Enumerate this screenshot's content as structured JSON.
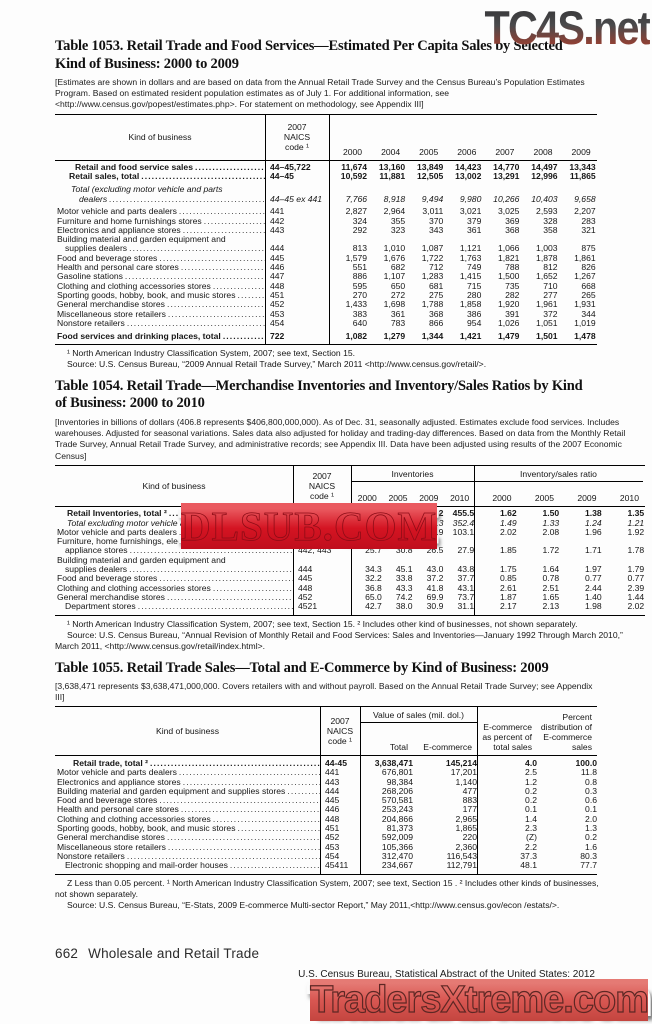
{
  "watermarks": {
    "top": "TC4S.net",
    "middle": "DLSUB.COM",
    "bottom": "TradersXtreme.com"
  },
  "footer": {
    "page_number": "662",
    "section": "Wholesale and Retail Trade",
    "source_line": "U.S. Census Bureau, Statistical Abstract of the United States: 2012"
  },
  "tables": [
    {
      "title": "Table 1053. Retail Trade and Food Services—Estimated Per Capita Sales by Selected Kind of Business: 2000 to 2009",
      "note": "[Estimates are shown in dollars and are based on data from the Annual Retail Trade Survey and the Census Bureau’s Population Estimates Program. Based on estimated resident population estimates as of July 1. For additional information, see <http://www.census.gov/popest/estimates.php>. For statement on methodology, see Appendix III]",
      "header": {
        "kind": "Kind of business",
        "naics": "2007 NAICS code ¹",
        "years": [
          "2000",
          "2004",
          "2005",
          "2006",
          "2007",
          "2008",
          "2009"
        ]
      },
      "rows": [
        {
          "cls": "bold",
          "indent": 20,
          "label": "Retail and food service sales",
          "naics": "44–45,722",
          "values": [
            "11,674",
            "13,160",
            "13,849",
            "14,423",
            "14,770",
            "14,497",
            "13,343"
          ]
        },
        {
          "cls": "bold",
          "indent": 14,
          "label": "Retail sales, total",
          "naics": "44–45",
          "values": [
            "10,592",
            "11,881",
            "12,505",
            "13,002",
            "13,291",
            "12,996",
            "11,865"
          ]
        },
        {
          "gap": true
        },
        {
          "cls": "italic",
          "pre": "Total (excluding motor vehicle and parts",
          "pre_indent": 16,
          "indent": 24,
          "label": "dealers",
          "naics": "44–45 ex 441",
          "values": [
            "7,766",
            "8,918",
            "9,494",
            "9,980",
            "10,266",
            "10,403",
            "9,658"
          ]
        },
        {
          "gap": true
        },
        {
          "indent": 2,
          "label": "Motor vehicle and parts dealers",
          "naics": "441",
          "values": [
            "2,827",
            "2,964",
            "3,011",
            "3,021",
            "3,025",
            "2,593",
            "2,207"
          ]
        },
        {
          "indent": 2,
          "label": "Furniture and home furnishings stores",
          "naics": "442",
          "values": [
            "324",
            "355",
            "370",
            "379",
            "369",
            "328",
            "283"
          ]
        },
        {
          "indent": 2,
          "label": "Electronics and appliance stores",
          "naics": "443",
          "values": [
            "292",
            "323",
            "343",
            "361",
            "368",
            "358",
            "321"
          ]
        },
        {
          "pre": "Building material and garden equipment and",
          "pre_indent": 2,
          "indent": 10,
          "label": "supplies dealers",
          "naics": "444",
          "values": [
            "813",
            "1,010",
            "1,087",
            "1,121",
            "1,066",
            "1,003",
            "875"
          ]
        },
        {
          "indent": 2,
          "label": "Food and beverage stores",
          "naics": "445",
          "values": [
            "1,579",
            "1,676",
            "1,722",
            "1,763",
            "1,821",
            "1,878",
            "1,861"
          ]
        },
        {
          "indent": 2,
          "label": "Health and personal care stores",
          "naics": "446",
          "values": [
            "551",
            "682",
            "712",
            "749",
            "788",
            "812",
            "826"
          ]
        },
        {
          "indent": 2,
          "label": "Gasoline stations",
          "naics": "447",
          "values": [
            "886",
            "1,107",
            "1,283",
            "1,415",
            "1,500",
            "1,652",
            "1,267"
          ]
        },
        {
          "indent": 2,
          "label": "Clothing and clothing accessories stores",
          "naics": "448",
          "values": [
            "595",
            "650",
            "681",
            "715",
            "735",
            "710",
            "668"
          ]
        },
        {
          "indent": 2,
          "label": "Sporting goods, hobby, book, and music stores",
          "naics": "451",
          "values": [
            "270",
            "272",
            "275",
            "280",
            "282",
            "277",
            "265"
          ]
        },
        {
          "indent": 2,
          "label": "General merchandise stores",
          "naics": "452",
          "values": [
            "1,433",
            "1,698",
            "1,788",
            "1,858",
            "1,920",
            "1,961",
            "1,931"
          ]
        },
        {
          "indent": 2,
          "label": "Miscellaneous store retailers",
          "naics": "453",
          "values": [
            "383",
            "361",
            "368",
            "386",
            "391",
            "372",
            "344"
          ]
        },
        {
          "indent": 2,
          "label": "Nonstore retailers",
          "naics": "454",
          "values": [
            "640",
            "783",
            "866",
            "954",
            "1,026",
            "1,051",
            "1,019"
          ]
        },
        {
          "gap": true
        },
        {
          "cls": "bold",
          "indent": 2,
          "label": "Food services and drinking places, total",
          "naics": "722",
          "values": [
            "1,082",
            "1,279",
            "1,344",
            "1,421",
            "1,479",
            "1,501",
            "1,478"
          ]
        }
      ],
      "footnotes": [
        "¹ North American Industry Classification System, 2007; see text, Section 15.",
        "Source: U.S. Census Bureau, “2009 Annual Retail Trade Survey,” March 2011 <http://www.census.gov/retail/>."
      ]
    },
    {
      "title": "Table 1054. Retail Trade—Merchandise Inventories and Inventory/Sales Ratios by Kind of Business: 2000 to 2010",
      "note": "[Inventories in billions of dollars (406.8 represents $406,800,000,000). As of Dec. 31, seasonally adjusted. Estimates exclude food services. Includes warehouses. Adjusted for seasonal variations. Sales data also adjusted for holiday and trading-day differences. Based on data from the Monthly Retail Trade Survey, Annual Retail Trade Survey, and administrative records; see Appendix III. Data have been adjusted using results of the 2007 Economic Census]",
      "header": {
        "kind": "Kind of business",
        "naics": "2007 NAICS code ¹",
        "group1": "Inventories",
        "group2": "Inventory/sales ratio",
        "years": [
          "2000",
          "2005",
          "2009",
          "2010"
        ]
      },
      "rows": [
        {
          "cls": "bold",
          "indent": 12,
          "label": "Retail Inventories, total ²",
          "naics": "44–45",
          "values": [
            "406.8",
            "472.2",
            "429.2",
            "455.5",
            "1.62",
            "1.50",
            "1.38",
            "1.35"
          ]
        },
        {
          "cls": "italic",
          "indent": 12,
          "label": "Total excluding motor vehicle and parts dealers",
          "naics": "44–45 ex 441",
          "values": [
            "318.6",
            "365.0",
            "340.3",
            "352.4",
            "1.49",
            "1.33",
            "1.24",
            "1.21"
          ]
        },
        {
          "indent": 2,
          "label": "Motor vehicle and parts dealers",
          "naics": "441",
          "values": [
            "88.2",
            "107.2",
            "88.9",
            "103.1",
            "2.02",
            "2.08",
            "1.96",
            "1.92"
          ]
        },
        {
          "pre": "Furniture, home furnishings, electronics, and",
          "pre_indent": 2,
          "indent": 10,
          "label": "appliance stores",
          "naics": "442, 443",
          "values": [
            "25.7",
            "30.8",
            "26.5",
            "27.9",
            "1.85",
            "1.72",
            "1.71",
            "1.78"
          ]
        },
        {
          "pre": "Building material and garden equipment and",
          "pre_indent": 2,
          "indent": 10,
          "label": "supplies dealers",
          "naics": "444",
          "values": [
            "34.3",
            "45.1",
            "43.0",
            "43.8",
            "1.75",
            "1.64",
            "1.97",
            "1.79"
          ]
        },
        {
          "indent": 2,
          "label": "Food and beverage stores",
          "naics": "445",
          "values": [
            "32.2",
            "33.8",
            "37.2",
            "37.7",
            "0.85",
            "0.78",
            "0.77",
            "0.77"
          ]
        },
        {
          "indent": 2,
          "label": "Clothing and clothing accessories stores",
          "naics": "448",
          "values": [
            "36.8",
            "43.3",
            "41.8",
            "43.1",
            "2.61",
            "2.51",
            "2.44",
            "2.39"
          ]
        },
        {
          "indent": 2,
          "label": "General merchandise stores",
          "naics": "452",
          "values": [
            "65.0",
            "74.2",
            "69.9",
            "73.7",
            "1.87",
            "1.65",
            "1.40",
            "1.44"
          ]
        },
        {
          "indent": 10,
          "label": "Department stores",
          "naics": "4521",
          "values": [
            "42.7",
            "38.0",
            "30.9",
            "31.1",
            "2.17",
            "2.13",
            "1.98",
            "2.02"
          ]
        }
      ],
      "footnotes": [
        "¹ North American Industry Classification System, 2007; see text, Section 15. ² Includes other kind of businesses, not shown separately.",
        "Source: U.S. Census Bureau, “Annual Revision of Monthly Retail and Food Services: Sales and Inventories—January 1992 Through March 2010,” March 2011, <http://www.census.gov/retail/index.html>."
      ]
    },
    {
      "title": "Table 1055. Retail Trade Sales—Total and E-Commerce by Kind of Business: 2009",
      "note": "[3,638,471 represents $3,638,471,000,000. Covers retailers with and without payroll. Based on the Annual Retail Trade Survey; see Appendix III]",
      "header": {
        "kind": "Kind of business",
        "naics": "2007 NAICS code ¹",
        "group_sales": "Value of sales (mil. dol.)",
        "sub_total": "Total",
        "sub_ecom": "E-commerce",
        "col_pct": "E-commerce as percent of total sales",
        "col_dist": "Percent distribution of E-commerce sales"
      },
      "rows": [
        {
          "cls": "bold",
          "indent": 18,
          "label": "Retail trade, total ²",
          "naics": "44-45",
          "values": [
            "3,638,471",
            "145,214",
            "4.0",
            "100.0"
          ]
        },
        {
          "indent": 2,
          "label": "Motor vehicle and parts dealers",
          "naics": "441",
          "values": [
            "676,801",
            "17,201",
            "2.5",
            "11.8"
          ]
        },
        {
          "indent": 2,
          "label": "Electronics and appliance stores",
          "naics": "443",
          "values": [
            "98,384",
            "1,140",
            "1.2",
            "0.8"
          ]
        },
        {
          "indent": 2,
          "label": "Building material and garden equipment and supplies stores",
          "naics": "444",
          "values": [
            "268,206",
            "477",
            "0.2",
            "0.3"
          ]
        },
        {
          "indent": 2,
          "label": "Food and beverage stores",
          "naics": "445",
          "values": [
            "570,581",
            "883",
            "0.2",
            "0.6"
          ]
        },
        {
          "indent": 2,
          "label": "Health and personal care stores",
          "naics": "446",
          "values": [
            "253,243",
            "177",
            "0.1",
            "0.1"
          ]
        },
        {
          "indent": 2,
          "label": "Clothing and clothing accessories stores",
          "naics": "448",
          "values": [
            "204,866",
            "2,965",
            "1.4",
            "2.0"
          ]
        },
        {
          "indent": 2,
          "label": "Sporting goods, hobby, book, and music stores",
          "naics": "451",
          "values": [
            "81,373",
            "1,865",
            "2.3",
            "1.3"
          ]
        },
        {
          "indent": 2,
          "label": "General merchandise stores",
          "naics": "452",
          "values": [
            "592,009",
            "220",
            "(Z)",
            "0.2"
          ]
        },
        {
          "indent": 2,
          "label": "Miscellaneous store retailers",
          "naics": "453",
          "values": [
            "105,366",
            "2,360",
            "2.2",
            "1.6"
          ]
        },
        {
          "indent": 2,
          "label": "Nonstore retailers",
          "naics": "454",
          "values": [
            "312,470",
            "116,543",
            "37.3",
            "80.3"
          ]
        },
        {
          "indent": 10,
          "label": "Electronic shopping and mail-order houses",
          "naics": "45411",
          "values": [
            "234,667",
            "112,791",
            "48.1",
            "77.7"
          ]
        }
      ],
      "footnotes": [
        "Z Less than 0.05 percent. ¹ North American Industry Classification System, 2007; see text, Section 15 . ² Includes other kinds of businesses, not shown separately.",
        "Source: U.S. Census Bureau, “E-Stats, 2009 E-commerce Multi-sector Report,” May 2011,<http://www.census.gov/econ /estats/>."
      ]
    }
  ]
}
